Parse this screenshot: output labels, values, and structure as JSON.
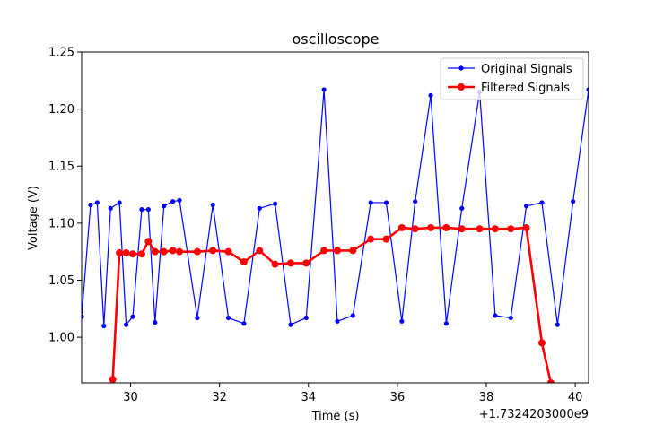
{
  "chart_data": {
    "type": "line",
    "title": "oscilloscope",
    "xlabel": "Time (s)",
    "ylabel": "Voltage (V)",
    "x_offset_label": "+1.7324203000e9",
    "xlim": [
      28.9,
      40.3
    ],
    "ylim": [
      0.96,
      1.25
    ],
    "x_ticks": [
      30,
      32,
      34,
      36,
      38,
      40
    ],
    "x_tick_labels": [
      "30",
      "32",
      "34",
      "36",
      "38",
      "40"
    ],
    "y_ticks": [
      1.0,
      1.05,
      1.1,
      1.15,
      1.2,
      1.25
    ],
    "y_tick_labels": [
      "1.00",
      "1.05",
      "1.10",
      "1.15",
      "1.20",
      "1.25"
    ],
    "grid": false,
    "legend_position": "top-right",
    "series": [
      {
        "name": "Original Signals",
        "color": "#0000ff",
        "line_width": "thin",
        "marker": "small-dot",
        "x": [
          28.9,
          29.1,
          29.25,
          29.4,
          29.55,
          29.75,
          29.9,
          30.05,
          30.25,
          30.4,
          30.55,
          30.75,
          30.95,
          31.1,
          31.5,
          31.85,
          32.2,
          32.55,
          32.9,
          33.25,
          33.6,
          33.95,
          34.35,
          34.65,
          35.0,
          35.4,
          35.75,
          36.1,
          36.4,
          36.75,
          37.1,
          37.45,
          37.85,
          38.2,
          38.55,
          38.9,
          39.25,
          39.6,
          39.95,
          40.3
        ],
        "y": [
          1.018,
          1.116,
          1.118,
          1.01,
          1.113,
          1.118,
          1.011,
          1.018,
          1.112,
          1.112,
          1.013,
          1.115,
          1.119,
          1.12,
          1.017,
          1.116,
          1.017,
          1.012,
          1.113,
          1.117,
          1.011,
          1.017,
          1.217,
          1.014,
          1.019,
          1.118,
          1.118,
          1.014,
          1.119,
          1.212,
          1.012,
          1.113,
          1.215,
          1.019,
          1.017,
          1.115,
          1.118,
          1.011,
          1.119,
          1.217
        ]
      },
      {
        "name": "Filtered Signals",
        "color": "#ff0000",
        "line_width": "thick",
        "marker": "large-dot",
        "x": [
          29.6,
          29.75,
          29.9,
          30.05,
          30.25,
          30.4,
          30.55,
          30.75,
          30.95,
          31.1,
          31.5,
          31.85,
          32.2,
          32.55,
          32.9,
          33.25,
          33.6,
          33.95,
          34.35,
          34.65,
          35.0,
          35.4,
          35.75,
          36.1,
          36.4,
          36.75,
          37.1,
          37.45,
          37.85,
          38.2,
          38.55,
          38.9,
          39.25,
          39.45
        ],
        "y": [
          0.963,
          1.074,
          1.074,
          1.073,
          1.073,
          1.084,
          1.075,
          1.075,
          1.076,
          1.075,
          1.075,
          1.076,
          1.075,
          1.066,
          1.076,
          1.064,
          1.065,
          1.065,
          1.076,
          1.076,
          1.076,
          1.086,
          1.086,
          1.096,
          1.095,
          1.096,
          1.096,
          1.095,
          1.095,
          1.095,
          1.095,
          1.096,
          0.995,
          0.96
        ]
      }
    ]
  }
}
